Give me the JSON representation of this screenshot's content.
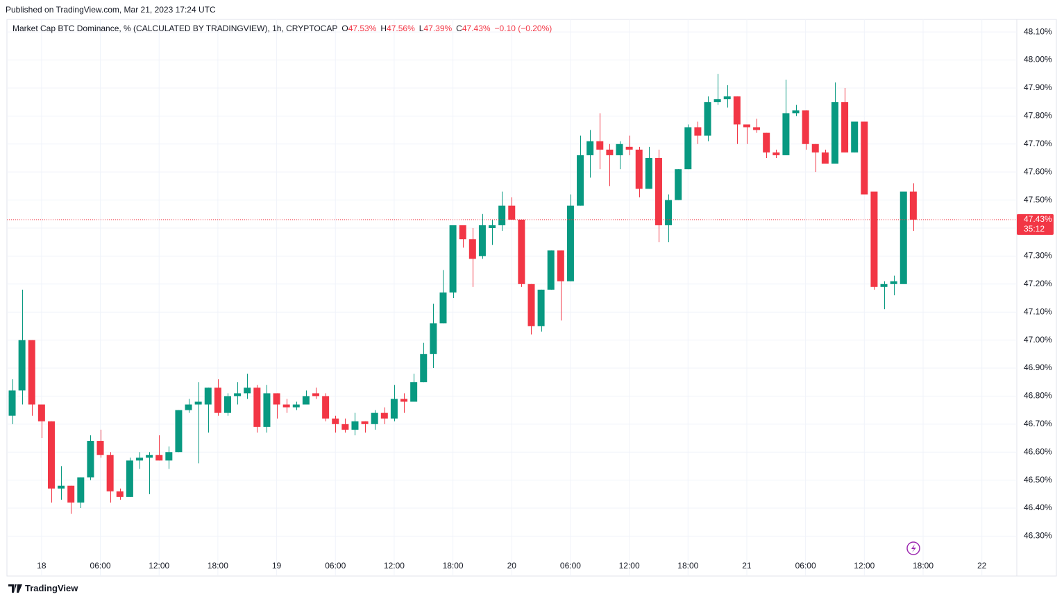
{
  "published": "Published on TradingView.com, Mar 21, 2023 17:24 UTC",
  "brand": "TradingView",
  "header": {
    "title": "Market Cap BTC Dominance, % (CALCULATED BY TRADINGVIEW), 1h, CRYPTOCAP",
    "ohlc": [
      {
        "key": "O",
        "label": "47.53%"
      },
      {
        "key": "H",
        "label": "47.56%"
      },
      {
        "key": "L",
        "label": "47.39%"
      },
      {
        "key": "C",
        "label": "47.43%"
      }
    ],
    "change": "−0.10 (−0.20%)"
  },
  "chart_data": {
    "type": "candlestick",
    "up_color": "#089981",
    "down_color": "#f23645",
    "grid": true,
    "x": [
      "2023-03-17 21:00",
      "2023-03-17 22:00",
      "2023-03-17 23:00",
      "2023-03-18 00:00",
      "2023-03-18 01:00",
      "2023-03-18 02:00",
      "2023-03-18 03:00",
      "2023-03-18 04:00",
      "2023-03-18 05:00",
      "2023-03-18 06:00",
      "2023-03-18 07:00",
      "2023-03-18 08:00",
      "2023-03-18 09:00",
      "2023-03-18 10:00",
      "2023-03-18 11:00",
      "2023-03-18 12:00",
      "2023-03-18 13:00",
      "2023-03-18 14:00",
      "2023-03-18 15:00",
      "2023-03-18 16:00",
      "2023-03-18 17:00",
      "2023-03-18 18:00",
      "2023-03-18 19:00",
      "2023-03-18 20:00",
      "2023-03-18 21:00",
      "2023-03-18 22:00",
      "2023-03-18 23:00",
      "2023-03-19 00:00",
      "2023-03-19 01:00",
      "2023-03-19 02:00",
      "2023-03-19 03:00",
      "2023-03-19 04:00",
      "2023-03-19 05:00",
      "2023-03-19 06:00",
      "2023-03-19 07:00",
      "2023-03-19 08:00",
      "2023-03-19 09:00",
      "2023-03-19 10:00",
      "2023-03-19 11:00",
      "2023-03-19 12:00",
      "2023-03-19 13:00",
      "2023-03-19 14:00",
      "2023-03-19 15:00",
      "2023-03-19 16:00",
      "2023-03-19 17:00",
      "2023-03-19 18:00",
      "2023-03-19 19:00",
      "2023-03-19 20:00",
      "2023-03-19 21:00",
      "2023-03-19 22:00",
      "2023-03-19 23:00",
      "2023-03-20 00:00",
      "2023-03-20 01:00",
      "2023-03-20 02:00",
      "2023-03-20 03:00",
      "2023-03-20 04:00",
      "2023-03-20 05:00",
      "2023-03-20 06:00",
      "2023-03-20 07:00",
      "2023-03-20 08:00",
      "2023-03-20 09:00",
      "2023-03-20 10:00",
      "2023-03-20 11:00",
      "2023-03-20 12:00",
      "2023-03-20 13:00",
      "2023-03-20 14:00",
      "2023-03-20 15:00",
      "2023-03-20 16:00",
      "2023-03-20 17:00",
      "2023-03-20 18:00",
      "2023-03-20 19:00",
      "2023-03-20 20:00",
      "2023-03-20 21:00",
      "2023-03-20 22:00",
      "2023-03-20 23:00",
      "2023-03-21 00:00",
      "2023-03-21 01:00",
      "2023-03-21 02:00",
      "2023-03-21 03:00",
      "2023-03-21 04:00",
      "2023-03-21 05:00",
      "2023-03-21 06:00",
      "2023-03-21 07:00",
      "2023-03-21 08:00",
      "2023-03-21 09:00",
      "2023-03-21 10:00",
      "2023-03-21 11:00",
      "2023-03-21 12:00",
      "2023-03-21 13:00",
      "2023-03-21 14:00",
      "2023-03-21 15:00",
      "2023-03-21 16:00",
      "2023-03-21 17:00"
    ],
    "open": [
      46.73,
      46.82,
      47.0,
      46.77,
      46.71,
      46.47,
      46.48,
      46.42,
      46.51,
      46.64,
      46.59,
      46.46,
      46.44,
      46.57,
      46.58,
      46.59,
      46.57,
      46.6,
      46.75,
      46.77,
      46.77,
      46.83,
      46.74,
      46.8,
      46.81,
      46.83,
      46.69,
      46.81,
      46.77,
      46.76,
      46.77,
      46.81,
      46.8,
      46.72,
      46.7,
      46.68,
      46.71,
      46.7,
      46.74,
      46.72,
      46.79,
      46.78,
      46.85,
      46.95,
      47.06,
      47.17,
      47.41,
      47.36,
      47.3,
      47.4,
      47.41,
      47.48,
      47.43,
      47.2,
      47.05,
      47.18,
      47.32,
      47.21,
      47.48,
      47.66,
      47.71,
      47.68,
      47.66,
      47.69,
      47.68,
      47.54,
      47.65,
      47.41,
      47.5,
      47.61,
      47.76,
      47.73,
      47.85,
      47.86,
      47.87,
      47.77,
      47.76,
      47.74,
      47.67,
      47.66,
      47.81,
      47.82,
      47.7,
      47.67,
      47.63,
      47.85,
      47.67,
      47.78,
      47.53,
      47.19,
      47.2,
      47.2,
      47.53
    ],
    "high": [
      46.86,
      47.18,
      47.0,
      46.77,
      46.71,
      46.55,
      46.48,
      46.51,
      46.66,
      46.68,
      46.6,
      46.47,
      46.58,
      46.6,
      46.6,
      46.66,
      46.62,
      46.75,
      46.79,
      46.85,
      46.83,
      46.86,
      46.81,
      46.85,
      46.88,
      46.84,
      46.84,
      46.81,
      46.79,
      46.78,
      46.82,
      46.83,
      46.81,
      46.73,
      46.72,
      46.74,
      46.71,
      46.75,
      46.76,
      46.84,
      46.81,
      46.88,
      46.99,
      47.13,
      47.25,
      47.41,
      47.41,
      47.4,
      47.45,
      47.43,
      47.53,
      47.51,
      47.43,
      47.2,
      47.18,
      47.32,
      47.32,
      47.52,
      47.73,
      47.75,
      47.81,
      47.7,
      47.71,
      47.73,
      47.69,
      47.69,
      47.68,
      47.52,
      47.61,
      47.77,
      47.78,
      47.87,
      47.95,
      47.91,
      47.87,
      47.77,
      47.79,
      47.74,
      47.68,
      47.93,
      47.84,
      47.82,
      47.7,
      47.68,
      47.92,
      47.9,
      47.78,
      47.78,
      47.53,
      47.21,
      47.23,
      47.53,
      47.56
    ],
    "low": [
      46.7,
      46.77,
      46.73,
      46.65,
      46.42,
      46.43,
      46.38,
      46.4,
      46.5,
      46.58,
      46.42,
      46.43,
      46.44,
      46.54,
      46.45,
      46.57,
      46.54,
      46.6,
      46.74,
      46.56,
      46.67,
      46.73,
      46.73,
      46.77,
      46.79,
      46.67,
      46.67,
      46.72,
      46.74,
      46.75,
      46.77,
      46.79,
      46.71,
      46.67,
      46.67,
      46.66,
      46.67,
      46.68,
      46.7,
      46.71,
      46.74,
      46.78,
      46.85,
      46.9,
      47.06,
      47.15,
      47.33,
      47.19,
      47.29,
      47.34,
      47.39,
      47.43,
      47.19,
      47.02,
      47.03,
      47.18,
      47.07,
      47.21,
      47.48,
      47.58,
      47.61,
      47.55,
      47.61,
      47.66,
      47.51,
      47.54,
      47.35,
      47.35,
      47.5,
      47.61,
      47.7,
      47.71,
      47.84,
      47.83,
      47.7,
      47.7,
      47.74,
      47.65,
      47.65,
      47.66,
      47.8,
      47.68,
      47.6,
      47.63,
      47.63,
      47.67,
      47.67,
      47.52,
      47.18,
      47.11,
      47.16,
      47.2,
      47.39
    ],
    "close": [
      46.82,
      47.0,
      46.77,
      46.71,
      46.47,
      46.48,
      46.42,
      46.51,
      46.64,
      46.59,
      46.46,
      46.44,
      46.57,
      46.58,
      46.59,
      46.57,
      46.6,
      46.75,
      46.77,
      46.78,
      46.83,
      46.74,
      46.8,
      46.81,
      46.83,
      46.69,
      46.81,
      46.77,
      46.76,
      46.77,
      46.8,
      46.8,
      46.72,
      46.7,
      46.68,
      46.71,
      46.7,
      46.74,
      46.72,
      46.79,
      46.78,
      46.85,
      46.95,
      47.06,
      47.17,
      47.41,
      47.36,
      47.29,
      47.41,
      47.41,
      47.48,
      47.43,
      47.2,
      47.05,
      47.18,
      47.32,
      47.21,
      47.48,
      47.66,
      47.71,
      47.68,
      47.66,
      47.7,
      47.68,
      47.54,
      47.65,
      47.41,
      47.5,
      47.61,
      47.76,
      47.73,
      47.85,
      47.86,
      47.87,
      47.77,
      47.76,
      47.75,
      47.67,
      47.66,
      47.81,
      47.82,
      47.7,
      47.67,
      47.63,
      47.85,
      47.67,
      47.78,
      47.52,
      47.19,
      47.2,
      47.21,
      47.53,
      47.43
    ],
    "xlim": [
      "2023-03-17 20:28",
      "2023-03-22 03:34"
    ],
    "xticks": [
      {
        "value": "2023-03-18 00:00",
        "label": "18"
      },
      {
        "value": "2023-03-18 06:00",
        "label": "06:00"
      },
      {
        "value": "2023-03-18 12:00",
        "label": "12:00"
      },
      {
        "value": "2023-03-18 18:00",
        "label": "18:00"
      },
      {
        "value": "2023-03-19 00:00",
        "label": "19"
      },
      {
        "value": "2023-03-19 06:00",
        "label": "06:00"
      },
      {
        "value": "2023-03-19 12:00",
        "label": "12:00"
      },
      {
        "value": "2023-03-19 18:00",
        "label": "18:00"
      },
      {
        "value": "2023-03-20 00:00",
        "label": "20"
      },
      {
        "value": "2023-03-20 06:00",
        "label": "06:00"
      },
      {
        "value": "2023-03-20 12:00",
        "label": "12:00"
      },
      {
        "value": "2023-03-20 18:00",
        "label": "18:00"
      },
      {
        "value": "2023-03-21 00:00",
        "label": "21"
      },
      {
        "value": "2023-03-21 06:00",
        "label": "06:00"
      },
      {
        "value": "2023-03-21 12:00",
        "label": "12:00"
      },
      {
        "value": "2023-03-21 18:00",
        "label": "18:00"
      },
      {
        "value": "2023-03-22 00:00",
        "label": "22"
      }
    ],
    "ylim": [
      46.16,
      48.14
    ],
    "yticks": [
      {
        "value": 46.3,
        "label": "46.30%"
      },
      {
        "value": 46.4,
        "label": "46.40%"
      },
      {
        "value": 46.5,
        "label": "46.50%"
      },
      {
        "value": 46.6,
        "label": "46.60%"
      },
      {
        "value": 46.7,
        "label": "46.70%"
      },
      {
        "value": 46.8,
        "label": "46.80%"
      },
      {
        "value": 46.9,
        "label": "46.90%"
      },
      {
        "value": 47.0,
        "label": "47.00%"
      },
      {
        "value": 47.1,
        "label": "47.10%"
      },
      {
        "value": 47.2,
        "label": "47.20%"
      },
      {
        "value": 47.3,
        "label": "47.30%"
      },
      {
        "value": 47.4,
        "label": "47.40%"
      },
      {
        "value": 47.5,
        "label": "47.50%"
      },
      {
        "value": 47.6,
        "label": "47.60%"
      },
      {
        "value": 47.7,
        "label": "47.70%"
      },
      {
        "value": 47.8,
        "label": "47.80%"
      },
      {
        "value": 47.9,
        "label": "47.90%"
      },
      {
        "value": 48.0,
        "label": "48.00%"
      },
      {
        "value": 48.1,
        "label": "48.10%"
      }
    ],
    "last_price": {
      "value": 47.43,
      "label": "47.43%",
      "countdown": "35:12"
    }
  }
}
